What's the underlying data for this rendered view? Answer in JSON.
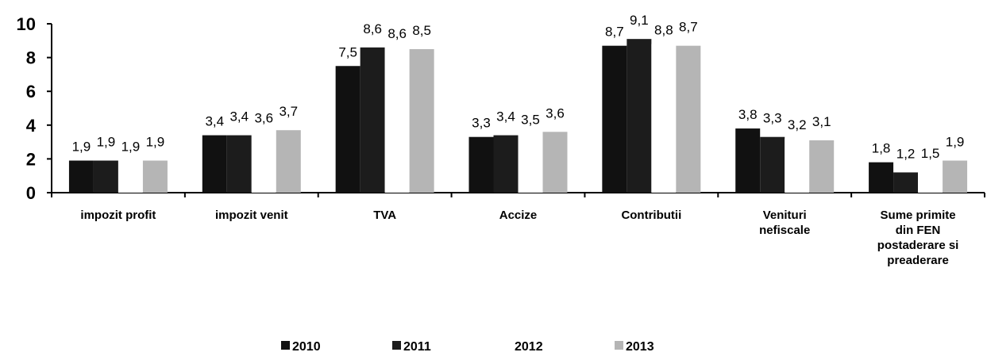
{
  "chart_data": {
    "type": "bar",
    "categories": [
      "impozit profit",
      "impozit venit",
      "TVA",
      "Accize",
      "Contributii",
      "Venituri\nnefiscale",
      "Sume primite\ndin FEN\npostaderare si\npreaderare"
    ],
    "series": [
      {
        "name": "2010",
        "color": "#111111",
        "values": [
          1.9,
          3.4,
          7.5,
          3.3,
          8.7,
          3.8,
          1.8
        ],
        "value_labels": [
          "1,9",
          "3,4",
          "7,5",
          "3,3",
          "8,7",
          "3,8",
          "1,8"
        ]
      },
      {
        "name": "2011",
        "color": "#1c1c1c",
        "values": [
          1.9,
          3.4,
          8.6,
          3.4,
          9.1,
          3.3,
          1.2
        ],
        "value_labels": [
          "1,9",
          "3,4",
          "8,6",
          "3,4",
          "9,1",
          "3,3",
          "1,2"
        ]
      },
      {
        "name": "2012",
        "color": "#ffffff",
        "values": [
          1.9,
          3.6,
          8.6,
          3.5,
          8.8,
          3.2,
          1.5
        ],
        "value_labels": [
          "1,9",
          "3,6",
          "8,6",
          "3,5",
          "8,8",
          "3,2",
          "1,5"
        ]
      },
      {
        "name": "2013",
        "color": "#b5b5b5",
        "values": [
          1.9,
          3.7,
          8.5,
          3.6,
          8.7,
          3.1,
          1.9
        ],
        "value_labels": [
          "1,9",
          "3,7",
          "8,5",
          "3,6",
          "8,7",
          "3,1",
          "1,9"
        ]
      }
    ],
    "ylim": [
      0,
      10
    ],
    "yticks": [
      0,
      2,
      4,
      6,
      8,
      10
    ],
    "grid": false,
    "legend": "bottom"
  }
}
